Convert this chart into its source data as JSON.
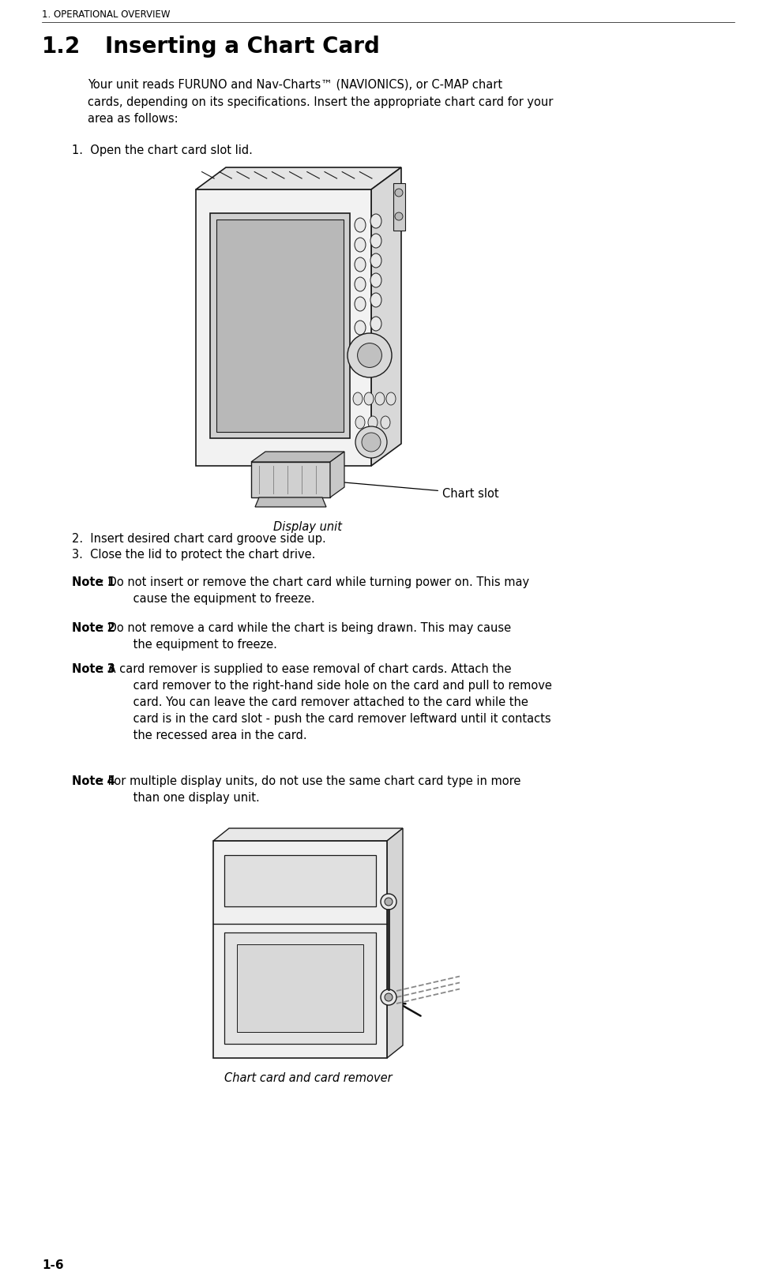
{
  "bg_color": "#ffffff",
  "header_text": "1. OPERATIONAL OVERVIEW",
  "header_fontsize": 8.5,
  "section_number": "1.2",
  "section_title": "Inserting a Chart Card",
  "section_title_fontsize": 20,
  "intro_text": "Your unit reads FURUNO and Nav-Charts™ (NAVIONICS), or C-MAP chart\ncards, depending on its specifications. Insert the appropriate chart card for your\narea as follows:",
  "intro_fontsize": 10.5,
  "step1_text": "1.  Open the chart card slot lid.",
  "step2_text": "2.  Insert desired chart card groove side up.",
  "step3_text": "3.  Close the lid to protect the chart drive.",
  "steps_fontsize": 10.5,
  "display_unit_caption": "Display unit",
  "chart_slot_label": "Chart slot",
  "chart_card_caption": "Chart card and card remover",
  "caption_fontsize": 10.5,
  "note1_bold": "Note 1",
  "note1_rest": ": Do not insert or remove the chart card while turning power on. This may\n         cause the equipment to freeze.",
  "note2_bold": "Note 2",
  "note2_rest": ": Do not remove a card while the chart is being drawn. This may cause\n         the equipment to freeze.",
  "note3_bold": "Note 3",
  "note3_rest": ": A card remover is supplied to ease removal of chart cards. Attach the\n         card remover to the right-hand side hole on the card and pull to remove\n         card. You can leave the card remover attached to the card while the\n         card is in the card slot - push the card remover leftward until it contacts\n         the recessed area in the card.",
  "note4_bold": "Note 4",
  "note4_rest": ": For multiple display units, do not use the same chart card type in more\n         than one display unit.",
  "notes_fontsize": 10.5,
  "page_number": "1-6",
  "page_number_fontsize": 11,
  "lm": 0.055,
  "indent": 0.115
}
